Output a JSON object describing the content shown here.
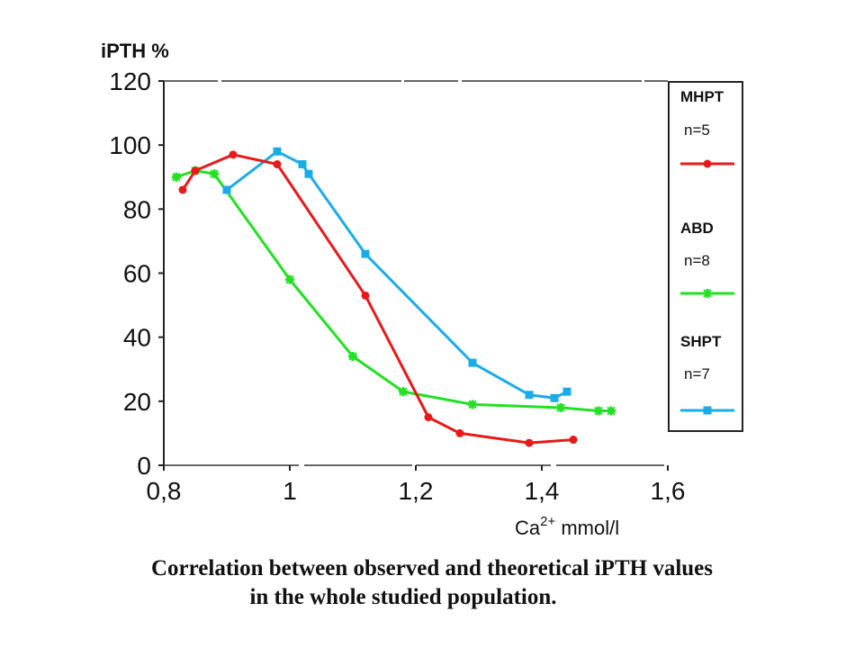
{
  "chart_data": {
    "type": "line",
    "ylabel": "iPTH %",
    "xlabel_base": "Ca",
    "xlabel_sup": "2+",
    "xlabel_unit": "mmol/l",
    "xlim": [
      0.8,
      1.6
    ],
    "ylim": [
      0,
      120
    ],
    "xticks": [
      "0,8",
      "1",
      "1,2",
      "1,4",
      "1,6"
    ],
    "xtick_values": [
      0.8,
      1.0,
      1.2,
      1.4,
      1.6
    ],
    "yticks": [
      "0",
      "20",
      "40",
      "60",
      "80",
      "100",
      "120"
    ],
    "ytick_values": [
      0,
      20,
      40,
      60,
      80,
      100,
      120
    ],
    "grid": false,
    "legend_position": "right",
    "series": [
      {
        "name": "MHPT",
        "n": "n=5",
        "color": "#e8191a",
        "marker": "circle",
        "x": [
          0.83,
          0.85,
          0.91,
          0.98,
          1.12,
          1.22,
          1.27,
          1.38,
          1.45
        ],
        "y": [
          86,
          92,
          97,
          94,
          53,
          15,
          10,
          7,
          8
        ]
      },
      {
        "name": "ABD",
        "n": "n=8",
        "color": "#22e022",
        "marker": "star",
        "x": [
          0.82,
          0.85,
          0.88,
          1.0,
          1.1,
          1.18,
          1.29,
          1.43,
          1.49,
          1.51
        ],
        "y": [
          90,
          92,
          91,
          58,
          34,
          23,
          19,
          18,
          17,
          17
        ]
      },
      {
        "name": "SHPT",
        "n": "n=7",
        "color": "#1aace8",
        "marker": "square",
        "x": [
          0.9,
          0.98,
          1.02,
          1.03,
          1.12,
          1.29,
          1.38,
          1.42,
          1.44
        ],
        "y": [
          86,
          98,
          94,
          91,
          66,
          32,
          22,
          21,
          23
        ]
      }
    ]
  },
  "caption": {
    "line1": "Correlation between observed and theoretical iPTH values",
    "line2": "in the whole studied population."
  }
}
